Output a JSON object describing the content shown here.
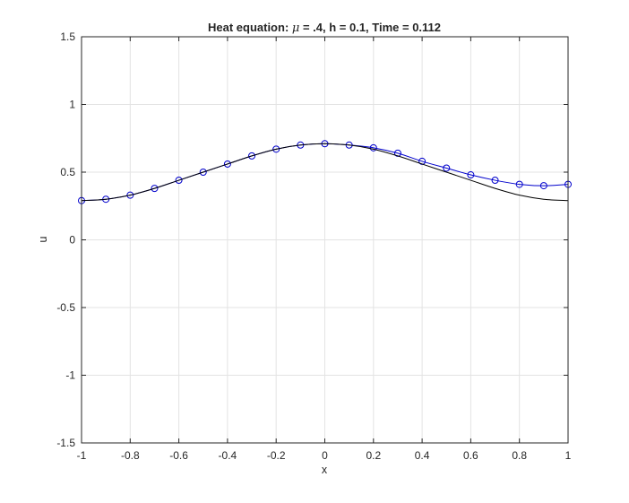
{
  "chart_data": {
    "type": "line",
    "title": "Heat equation: μ = .4, h = 0.1, Time = 0.112",
    "title_parts": {
      "prefix": "Heat equation: ",
      "symbol": "μ",
      "suffix": " = .4, h = 0.1, Time = 0.112"
    },
    "xlabel": "x",
    "ylabel": "u",
    "xlim": [
      -1,
      1
    ],
    "ylim": [
      -1.5,
      1.5
    ],
    "grid": true,
    "xticks": [
      -1,
      -0.8,
      -0.6,
      -0.4,
      -0.2,
      0,
      0.2,
      0.4,
      0.6,
      0.8,
      1
    ],
    "xtick_labels": [
      "-1",
      "-0.8",
      "-0.6",
      "-0.4",
      "-0.2",
      "0",
      "0.2",
      "0.4",
      "0.6",
      "0.8",
      "1"
    ],
    "yticks": [
      -1.5,
      -1,
      -0.5,
      0,
      0.5,
      1,
      1.5
    ],
    "ytick_labels": [
      "-1.5",
      "-1",
      "-0.5",
      "0",
      "0.5",
      "1",
      "1.5"
    ],
    "series": [
      {
        "color": "#0000cc",
        "marker": "circle",
        "x": [
          -1,
          -0.9,
          -0.8,
          -0.7,
          -0.6,
          -0.5,
          -0.4,
          -0.3,
          -0.2,
          -0.1,
          0,
          0.1,
          0.2,
          0.3,
          0.4,
          0.5,
          0.6,
          0.7,
          0.8,
          0.9,
          1
        ],
        "y": [
          0.29,
          0.3,
          0.33,
          0.38,
          0.44,
          0.5,
          0.56,
          0.62,
          0.67,
          0.7,
          0.71,
          0.7,
          0.68,
          0.64,
          0.58,
          0.53,
          0.48,
          0.44,
          0.41,
          0.4,
          0.41
        ]
      },
      {
        "color": "#000000",
        "marker": "none",
        "x": [
          -1,
          -0.9,
          -0.8,
          -0.7,
          -0.6,
          -0.5,
          -0.4,
          -0.3,
          -0.2,
          -0.1,
          0,
          0.1,
          0.2,
          0.3,
          0.4,
          0.5,
          0.6,
          0.7,
          0.8,
          0.9,
          1
        ],
        "y": [
          0.29,
          0.3,
          0.33,
          0.38,
          0.44,
          0.5,
          0.56,
          0.62,
          0.67,
          0.7,
          0.71,
          0.7,
          0.67,
          0.62,
          0.56,
          0.5,
          0.44,
          0.38,
          0.33,
          0.3,
          0.29
        ]
      }
    ],
    "colors": {
      "grid": "#e3e3e3",
      "axes": "#262626",
      "background": "#ffffff"
    }
  }
}
